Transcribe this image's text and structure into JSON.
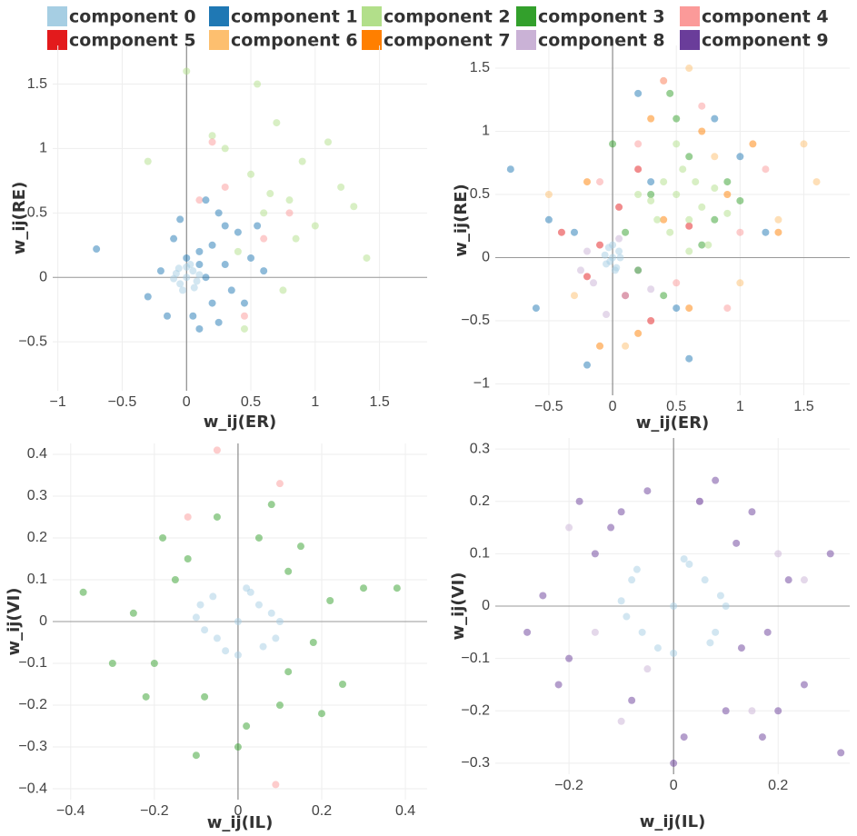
{
  "legend": [
    {
      "name": "component 0",
      "color": "#a6cee3"
    },
    {
      "name": "component 1",
      "color": "#1f78b4"
    },
    {
      "name": "component 2",
      "color": "#b2df8a"
    },
    {
      "name": "component 3",
      "color": "#33a02c"
    },
    {
      "name": "component 4",
      "color": "#fb9a99"
    },
    {
      "name": "component 5",
      "color": "#e31a1c"
    },
    {
      "name": "component 6",
      "color": "#fdbf6f"
    },
    {
      "name": "component 7",
      "color": "#ff7f00"
    },
    {
      "name": "component 8",
      "color": "#cab2d6"
    },
    {
      "name": "component 9",
      "color": "#6a3d9a"
    }
  ],
  "chart_data": [
    {
      "type": "scatter",
      "xlabel": "w_ij(ER)",
      "ylabel": "w_ij(RE)",
      "grid": true,
      "zeroline": true,
      "xlim": [
        -1.04,
        1.87
      ],
      "ylim": [
        -0.88,
        1.8
      ],
      "xticks": [
        {
          "value": -1,
          "label": "−1"
        },
        {
          "value": -0.5,
          "label": "−0.5"
        },
        0,
        0.5,
        1,
        1.5
      ],
      "yticks": [
        {
          "value": -0.5,
          "label": "−0.5"
        },
        0,
        0.5,
        1,
        1.5
      ],
      "series": [
        {
          "color": "#b2df8a",
          "x": [
            0.5,
            0.8,
            0.3,
            1,
            0.7,
            0.4,
            0.9,
            1.2,
            0.6,
            0.2,
            1.4,
            0.75,
            0.55,
            -0.3,
            1.1,
            0.85,
            0.65,
            0,
            1.3,
            0.45
          ],
          "y": [
            0.8,
            0.6,
            1,
            0.4,
            1.2,
            0.2,
            0.9,
            0.7,
            0.5,
            1.1,
            0.15,
            -0.1,
            1.5,
            0.9,
            1.05,
            0.3,
            0.65,
            1.6,
            0.55,
            -0.4
          ]
        },
        {
          "color": "#fb9a99",
          "x": [
            0.3,
            0.6,
            0.1,
            0.45,
            0.8,
            0.2
          ],
          "y": [
            0.7,
            0.3,
            0.6,
            -0.3,
            0.5,
            1.05
          ]
        },
        {
          "color": "#1f78b4",
          "x": [
            0.1,
            0.3,
            -0.1,
            0.2,
            0.4,
            0.05,
            -0.2,
            0.25,
            0.15,
            0.35,
            -0.05,
            0.5,
            0.1,
            0.2,
            -0.3,
            0.45,
            0.3,
            0,
            0.15,
            0.6,
            -0.15,
            0.25,
            0.1,
            -0.7,
            0.55
          ],
          "y": [
            0.2,
            0.1,
            0.3,
            -0.2,
            0.35,
            -0.3,
            0.05,
            0.5,
            0,
            -0.1,
            0.45,
            0.15,
            -0.4,
            0.25,
            -0.15,
            -0.2,
            0.4,
            0.15,
            0.6,
            0.05,
            -0.3,
            -0.35,
            0.1,
            0.22,
            0.4
          ]
        },
        {
          "color": "#a6cee3",
          "x": [
            0,
            0.05,
            -0.05,
            0.08,
            -0.08,
            0.03,
            -0.03,
            0,
            0.1,
            -0.1,
            0.06,
            -0.06
          ],
          "y": [
            0,
            0.05,
            -0.05,
            -0.03,
            0.03,
            0.1,
            -0.1,
            0.08,
            0.02,
            -0.01,
            -0.08,
            0.07
          ]
        }
      ]
    },
    {
      "type": "scatter",
      "xlabel": "w_ij(ER)",
      "ylabel": "w_ij(RE)",
      "grid": true,
      "zeroline": true,
      "xlim": [
        -0.92,
        1.86
      ],
      "ylim": [
        -1.09,
        1.68
      ],
      "xticks": [
        {
          "value": -0.5,
          "label": "−0.5"
        },
        0,
        0.5,
        1,
        1.5
      ],
      "yticks": [
        {
          "value": -1,
          "label": "−1"
        },
        {
          "value": -0.5,
          "label": "−0.5"
        },
        0,
        0.5,
        1,
        1.5
      ],
      "series": [
        {
          "color": "#1f78b4",
          "x": [
            -0.5,
            -0.8,
            0.2,
            1,
            0.5,
            -0.3,
            0.8,
            -0.6,
            0.3,
            0.6,
            -0.2,
            1.2
          ],
          "y": [
            0.3,
            0.7,
            1.3,
            0.8,
            -0.4,
            0.2,
            1.1,
            -0.4,
            0.6,
            -0.8,
            -0.85,
            0.2
          ]
        },
        {
          "color": "#fdbf6f",
          "x": [
            0.8,
            1.3,
            0.4,
            -0.3,
            1.6,
            0.1,
            1,
            0.6,
            1.5,
            -0.5
          ],
          "y": [
            0.8,
            0.3,
            1.4,
            -0.3,
            0.6,
            -0.7,
            -0.2,
            1.5,
            0.9,
            0.5
          ]
        },
        {
          "color": "#ff7f00",
          "x": [
            0.3,
            0.9,
            -0.2,
            1.1,
            0.6,
            0.2,
            1.3,
            -0.1,
            0.7,
            0.4
          ],
          "y": [
            1.1,
            0.5,
            0.6,
            0.9,
            -0.4,
            -0.6,
            0.2,
            -0.7,
            1,
            0.3
          ]
        },
        {
          "color": "#fb9a99",
          "x": [
            0.2,
            0.7,
            1,
            -0.1,
            0.5,
            1.2,
            0.4,
            0.9
          ],
          "y": [
            0.9,
            1.2,
            0.2,
            0.6,
            -0.2,
            0.7,
            1.4,
            -0.4
          ]
        },
        {
          "color": "#e31a1c",
          "x": [
            -0.1,
            0.1,
            -0.4,
            0.3,
            0.05,
            -0.2,
            0.6,
            0.2
          ],
          "y": [
            0.1,
            -0.3,
            0.2,
            -0.5,
            0.4,
            -0.15,
            0.25,
            0.7
          ]
        },
        {
          "color": "#cab2d6",
          "x": [
            -0.15,
            0.1,
            -0.2,
            0.2,
            -0.05,
            0.3,
            0.05,
            -0.25
          ],
          "y": [
            -0.2,
            -0.3,
            0.05,
            -0.1,
            -0.45,
            -0.25,
            0.15,
            -0.1
          ]
        },
        {
          "color": "#33a02c",
          "x": [
            0.3,
            0.6,
            0.1,
            0.8,
            0.5,
            0.2,
            0.9,
            0.4,
            0.7,
            0,
            1,
            0.45
          ],
          "y": [
            0.5,
            0.8,
            0.2,
            0.3,
            1.1,
            -0.1,
            0.6,
            -0.3,
            0.1,
            0.9,
            0.45,
            1.3
          ]
        },
        {
          "color": "#b2df8a",
          "x": [
            0.5,
            0.7,
            0.4,
            0.6,
            0.3,
            0.8,
            0.55,
            0.45,
            0.65,
            0.9,
            0.35,
            0.5,
            0.75,
            0.2,
            0.6
          ],
          "y": [
            0.5,
            0.4,
            0.6,
            0.3,
            0.45,
            0.55,
            0.7,
            0.2,
            0.6,
            0.35,
            0.3,
            0.9,
            0.1,
            0.5,
            0.05
          ]
        },
        {
          "color": "#a6cee3",
          "x": [
            0,
            0.05,
            -0.05,
            0.03,
            -0.03,
            0.06,
            -0.06,
            0,
            0.02,
            -0.02
          ],
          "y": [
            0,
            0.05,
            -0.05,
            -0.08,
            0.08,
            0,
            0.02,
            0.1,
            -0.1,
            -0.03
          ]
        }
      ]
    },
    {
      "type": "scatter",
      "xlabel": "w_ij(IL)",
      "ylabel": "w_ij(VI)",
      "grid": true,
      "zeroline": true,
      "xlim": [
        -0.443,
        0.452
      ],
      "ylim": [
        -0.426,
        0.426
      ],
      "xticks": [
        {
          "value": -0.4,
          "label": "−0.4"
        },
        {
          "value": -0.2,
          "label": "−0.2"
        },
        0,
        0.2,
        0.4
      ],
      "yticks": [
        {
          "value": -0.4,
          "label": "−0.4"
        },
        {
          "value": -0.3,
          "label": "−0.3"
        },
        {
          "value": -0.2,
          "label": "−0.2"
        },
        {
          "value": -0.1,
          "label": "−0.1"
        },
        0,
        0.1,
        0.2,
        0.3,
        0.4
      ],
      "series": [
        {
          "color": "#fb9a99",
          "x": [
            -0.05,
            0.09,
            0.1,
            -0.12
          ],
          "y": [
            0.41,
            -0.39,
            0.33,
            0.25
          ]
        },
        {
          "color": "#33a02c",
          "x": [
            -0.15,
            0.12,
            0.18,
            -0.2,
            0.05,
            -0.08,
            0.22,
            -0.25,
            0.1,
            0.3,
            -0.3,
            0.15,
            -0.12,
            0.02,
            0.25,
            -0.18,
            0.08,
            -0.05,
            0.2,
            -0.22,
            -0.37,
            0.38,
            0,
            0.12,
            -0.1
          ],
          "y": [
            0.1,
            0.12,
            -0.05,
            -0.1,
            0.2,
            -0.18,
            0.05,
            0.02,
            -0.2,
            0.08,
            -0.1,
            0.18,
            0.15,
            -0.25,
            -0.15,
            0.2,
            0.28,
            0.25,
            -0.22,
            -0.18,
            0.07,
            0.08,
            -0.3,
            -0.12,
            -0.32
          ]
        },
        {
          "color": "#a6cee3",
          "x": [
            0,
            0.05,
            -0.05,
            0.08,
            -0.08,
            0.03,
            -0.03,
            0.1,
            -0.1,
            0.06,
            -0.06,
            0,
            0.09,
            -0.09,
            0.02
          ],
          "y": [
            0,
            0.04,
            -0.04,
            0.02,
            -0.02,
            0.07,
            -0.07,
            0,
            0.01,
            -0.06,
            0.06,
            -0.08,
            -0.04,
            0.04,
            0.08
          ]
        }
      ]
    },
    {
      "type": "scatter",
      "xlabel": "w_ij(IL)",
      "ylabel": "w_ij(VI)",
      "grid": true,
      "zeroline": true,
      "xlim": [
        -0.341,
        0.337
      ],
      "ylim": [
        -0.321,
        0.321
      ],
      "xticks": [
        {
          "value": -0.2,
          "label": "−0.2"
        },
        0,
        0.2
      ],
      "yticks": [
        {
          "value": -0.3,
          "label": "−0.3"
        },
        {
          "value": -0.2,
          "label": "−0.2"
        },
        {
          "value": -0.1,
          "label": "−0.1"
        },
        0,
        0.1,
        0.2,
        0.3
      ],
      "series": [
        {
          "color": "#cab2d6",
          "x": [
            -0.2,
            0.15,
            0.05,
            -0.1,
            0.25,
            -0.05,
            0.2,
            -0.15
          ],
          "y": [
            0.15,
            -0.2,
            0.2,
            -0.22,
            0.05,
            -0.12,
            0.1,
            -0.05
          ]
        },
        {
          "color": "#6a3d9a",
          "x": [
            -0.15,
            0.12,
            0.18,
            -0.2,
            0.05,
            -0.08,
            0.22,
            -0.25,
            0.1,
            0.3,
            -0.28,
            0.15,
            -0.12,
            0.02,
            0.25,
            -0.18,
            0.08,
            -0.05,
            0.2,
            -0.22,
            0.17,
            -0.1,
            0,
            0.13,
            0.32
          ],
          "y": [
            0.1,
            0.12,
            -0.05,
            -0.1,
            0.2,
            -0.18,
            0.05,
            0.02,
            -0.2,
            0.1,
            -0.05,
            0.18,
            0.15,
            -0.25,
            -0.15,
            0.2,
            0.24,
            0.22,
            -0.2,
            -0.15,
            -0.25,
            0.18,
            -0.3,
            -0.08,
            -0.28
          ]
        },
        {
          "color": "#a6cee3",
          "x": [
            0,
            0.06,
            -0.06,
            0.09,
            -0.09,
            0.03,
            -0.03,
            0.1,
            -0.1,
            0.07,
            -0.07,
            0,
            0.08,
            -0.08,
            0.02
          ],
          "y": [
            0,
            0.05,
            -0.05,
            0.02,
            -0.02,
            0.08,
            -0.08,
            0,
            0.01,
            -0.07,
            0.07,
            -0.09,
            -0.05,
            0.05,
            0.09
          ]
        }
      ]
    }
  ]
}
